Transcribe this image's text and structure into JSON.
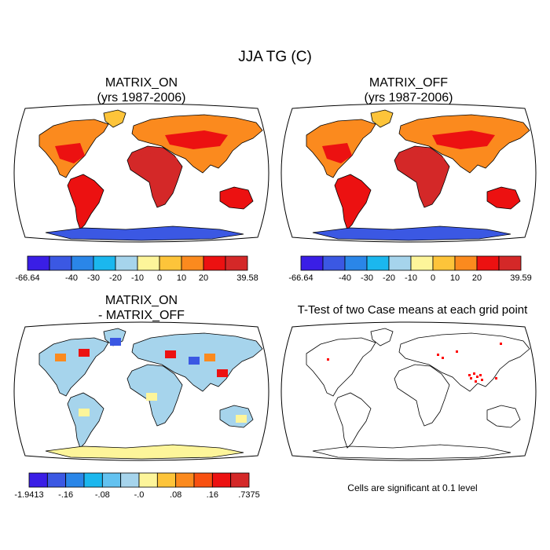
{
  "figure_title": "JJA TG (C)",
  "panels": [
    {
      "id": "on",
      "title": "MATRIX_ON\n(yrs 1987-2006)",
      "kind": "field"
    },
    {
      "id": "off",
      "title": "MATRIX_OFF\n(yrs 1987-2006)",
      "kind": "field"
    },
    {
      "id": "diff",
      "title": "MATRIX_ON\n- MATRIX_OFF",
      "kind": "difference"
    },
    {
      "id": "ttest",
      "title": "T-Test of two Case means at each grid point",
      "kind": "significance"
    }
  ],
  "colorbars": {
    "on": {
      "labels": [
        "-66.64",
        "-40",
        "-30",
        "-20",
        "-10",
        "0",
        "10",
        "20",
        "39.58"
      ],
      "colors": [
        "#3a1ee6",
        "#3b58e3",
        "#2a86e8",
        "#1bb7ee",
        "#a6d4ec",
        "#fdf59a",
        "#fdc43a",
        "#fb8a1e",
        "#ec1111",
        "#d42828"
      ]
    },
    "off": {
      "labels": [
        "-66.64",
        "-40",
        "-30",
        "-20",
        "-10",
        "0",
        "10",
        "20",
        "39.59"
      ],
      "colors": [
        "#3a1ee6",
        "#3b58e3",
        "#2a86e8",
        "#1bb7ee",
        "#a6d4ec",
        "#fdf59a",
        "#fdc43a",
        "#fb8a1e",
        "#ec1111",
        "#d42828"
      ]
    },
    "diff": {
      "labels": [
        "-1.9413",
        "-.16",
        "-.08",
        "-.0",
        ".08",
        ".16",
        ".7375"
      ],
      "colors": [
        "#3a1ee6",
        "#3b58e3",
        "#2a86e8",
        "#1bb7ee",
        "#63c2f0",
        "#a6d4ec",
        "#fdf59a",
        "#fdc43a",
        "#fb8a1e",
        "#f85010",
        "#ec1111",
        "#d42828"
      ]
    }
  },
  "significance_note": "Cells are significant at 0.1 level",
  "colors": {
    "land_hot": "#d42828",
    "land_warm": "#ec1111",
    "land_mild": "#fb8a1e",
    "land_cool": "#fdc43a",
    "ice": "#3b58e3",
    "diff_bg": "#a6d4ec",
    "diff_pos": "#fdf59a",
    "sig": "#ff0000"
  }
}
